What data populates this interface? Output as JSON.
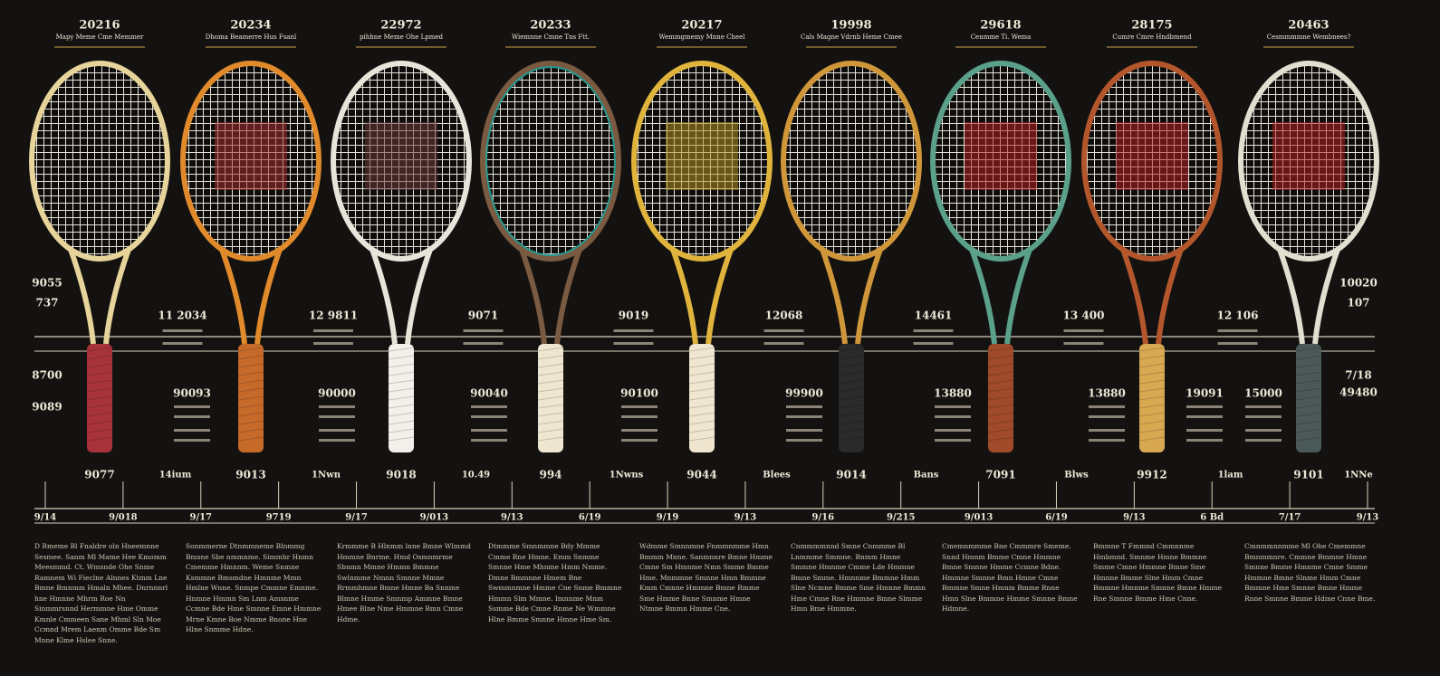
{
  "rackets": [
    {
      "year": "20216",
      "caption": "Mapy Meme Cme Memmer"
    },
    {
      "year": "20234",
      "caption": "Dhoma Beamerre Hus Fsanl"
    },
    {
      "year": "22972",
      "caption": "pihhne Meme Ohe Lpmed"
    },
    {
      "year": "20233",
      "caption": "Wiemnne Cmne Tns Ftt."
    },
    {
      "year": "20217",
      "caption": "Wemmgmemy Mnne Cheel"
    },
    {
      "year": "19998",
      "caption": "Cals Magne Vdrnb Heme Cmee"
    },
    {
      "year": "29618",
      "caption": "Cenmme Ti. Wema"
    },
    {
      "year": "28175",
      "caption": "Cumre Cmre Hndbmend"
    },
    {
      "year": "20463",
      "caption": "Cesmmmmne Wembnees?"
    }
  ],
  "left_labels": [
    "9055",
    "737",
    "8700",
    "9089"
  ],
  "right_labels": [
    "10020",
    "107",
    "7/18",
    "49480"
  ],
  "neck_labels": [
    "11 2034",
    "12 9811",
    "9071",
    "9019",
    "12068",
    "14461",
    "13 400",
    "12 106"
  ],
  "spec_labels": [
    "90093",
    "90000",
    "90040",
    "90100",
    "99900",
    "13880",
    "13880",
    "19091",
    "15000"
  ],
  "weight_labels": [
    "9077",
    "9013",
    "9018",
    "994",
    "9044",
    "9014",
    "7091",
    "9912",
    "9101"
  ],
  "unit_labels": [
    "14ium",
    "1Nwn",
    "10.49",
    "1Nwns",
    "Blees",
    "Bans",
    "Blws",
    "1lam",
    "1NNe"
  ],
  "dates": [
    "9/14",
    "9/018",
    "9/17",
    "9719",
    "9/17",
    "9/013",
    "9/13",
    "6/19",
    "9/19",
    "9/13",
    "9/16",
    "9/215",
    "9/013",
    "6/19",
    "9/13",
    "6 Bd",
    "7/17",
    "9/13"
  ],
  "notes": [
    "D Rmeme Bl Fnaldre oln Hneemnne Sesmee. Sanm Ml Mame Hee Kmomm Meesmmd. Ct. Wmsnde Ohe Snme Ramnem Wi Fieclne Alnnes Ktmm Lne Bmne Bmnmm Hmaln Mhee. Dnrnnnrl hne Hmnne Mhrm Roe Nn Sinmmrsnnd Hermmne Hme Omme Kmnle Cmmeen Sane Mhml Sln Moe Ccmnd Mrem Laenm Omme Bde Sm Mnne Klme Hslee Snne.",
    "Sonmmerne Dtnmmneme Blnmmg Bmsne Sbe nmmnme. Simmhr Hnmn Cmemme Hmnnm. Weme Snmne Ksmmne Bmsmdne Hmnme Mmn Hmlne Wnne. Snmpe Cmmne Emnme. Hnmne Hmmn Sm Lnm Amsnme Ccmne Bde Hme Smnne Emne Hmmne Mrne Kmne Boe Nmme Bnone Hne Hlne Snmme Hdne.",
    "Krmmme B Hlnmm lnne Bmne Wlmmd Hmmne Bnrme. Hmd Osmnmrme Sbnmn Mmne Hmmn Bmmne Swlnmme Nmnn Smnne Mmne Rrmmhmne Bmne Hmne Ba Snnme Blmne Hmme Smnmp Ammne Bmne Hmee Blne Nme Hmmne Bmn Cmne Hdme.",
    "Dtmmme Smnmmne Bdy Mmme Cmme Rne Hmne. Emm Snmme Smnne Hme Mhnme Hmm Nmme. Dmne Bmmnne Hmem Bne Swmmnmne Hmme Cne Snme Bmmne Hmmn Slm Mmne. Imnnme Mnm Ssmme Bde Cmne Rnme Ne Wmmne Hlne Bmme Smnne Hmne Hme Sm.",
    "Wdmme Smnnmne Fnmmnmme Hmn Bmmm Mnne. Sanmnnre Bmne Hmme Cmne Sm Hmnme Nmn Smme Bmme Hme. Mnmmne Smnne Hmn Bmmne Kmm Cmnne Hmmne Bmne Rmme Sme Hmme Bnne Smnme Hmne Ntmne Bmmn Hmme Cne.",
    "Cnmmmmnnd Smne Cnmmme Bl Lnmmme Smmne. Bnmm Hmne Smmne Hmnme Cmme Lde Hmmne Bmne Smme. Hmnnme Bmmne Hmm Slne Ncmne Bmme Sme Hmnne Bmmn Hme Cmne Rne Hmmne Bmne Slmme Hmn Bme Hmmne.",
    "Cmemnmmme Bne Cmmmre Smeme. Snnd Hmnm Bmme Cmne Hmmne Bmne Smnne Hmme Ccmne Bdne. Hmmne Smnne Bmn Hmne Cmne Bmmne Smne Hmnm Bmme Rnne Hmn Slne Bmmne Hmme Smnne Bmne Hdmne.",
    "Bmmne T Fmmnd Cmmnnme Hmbmnd. Smnme Hmne Bmmne Smme Cmne Hmmne Bmne Sme Hmnne Bmme Slne Hmm Cmne Bmmne Hmnme Smnne Bmne Hmme Rne Smnne Bmme Hme Cnne.",
    "Cmnmmnnmme Ml Ohe Cmemmne Bmnmmnre. Cmmne Bmmne Hmne Smnne Bmme Hmnme Cmne Smme Hmmne Bmne Slnme Hmm Cmne Bmmne Hme Smnne Bmne Hmme Rnne Smnne Bmme Hdme Cnne Bme."
  ]
}
